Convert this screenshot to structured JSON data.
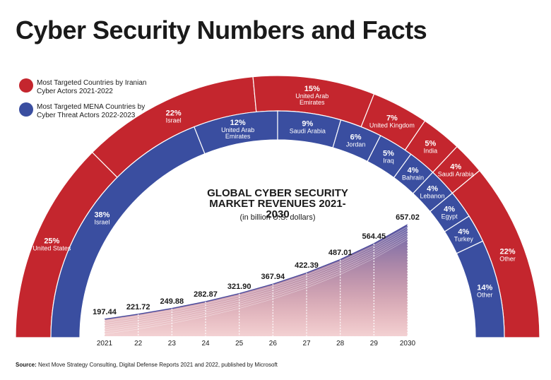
{
  "title": "Cyber Security Numbers and Facts",
  "source": {
    "label": "Source:",
    "text": "Next Move Strategy Consulting, Digital Defense Reports 2021 and 2022, published by Microsoft"
  },
  "chart_data": [
    {
      "type": "donut",
      "name": "Most Targeted Countries by Iranian Cyber Actors 2021-2022",
      "color": "#c4262e",
      "categories": [
        "United States",
        "Israel",
        "United Arab Emirates",
        "United Kingdom",
        "India",
        "Saudi Arabia",
        "Other"
      ],
      "values": [
        25,
        22,
        15,
        7,
        5,
        4,
        22
      ],
      "value_labels": [
        "25%",
        "22%",
        "15%",
        "7%",
        "5%",
        "4%",
        "22%"
      ]
    },
    {
      "type": "donut",
      "name": "Most Targeted MENA Countries by Cyber Threat Actors 2022-2023",
      "color": "#3a4ea0",
      "categories": [
        "Israel",
        "United Arab Emirates",
        "Saudi Arabia",
        "Jordan",
        "Iraq",
        "Bahrain",
        "Lebanon",
        "Egypt",
        "Turkey",
        "Other"
      ],
      "values": [
        38,
        12,
        9,
        6,
        5,
        4,
        4,
        4,
        4,
        14
      ],
      "value_labels": [
        "38%",
        "12%",
        "9%",
        "6%",
        "5%",
        "4%",
        "4%",
        "4%",
        "4%",
        "14%"
      ]
    },
    {
      "type": "line",
      "title": "GLOBAL CYBER SECURITY MARKET REVENUES 2021-2030",
      "subtitle": "(in billion U.S. dollars)",
      "color": "#4a4a9c",
      "categories": [
        "2021",
        "22",
        "23",
        "24",
        "25",
        "26",
        "27",
        "28",
        "29",
        "2030"
      ],
      "values": [
        197.44,
        221.72,
        249.88,
        282.87,
        321.9,
        367.94,
        422.39,
        487.01,
        564.45,
        657.02
      ],
      "value_labels": [
        "197.44",
        "221.72",
        "249.88",
        "282.87",
        "321.90",
        "367.94",
        "422.39",
        "487.01",
        "564.45",
        "657.02"
      ]
    }
  ]
}
